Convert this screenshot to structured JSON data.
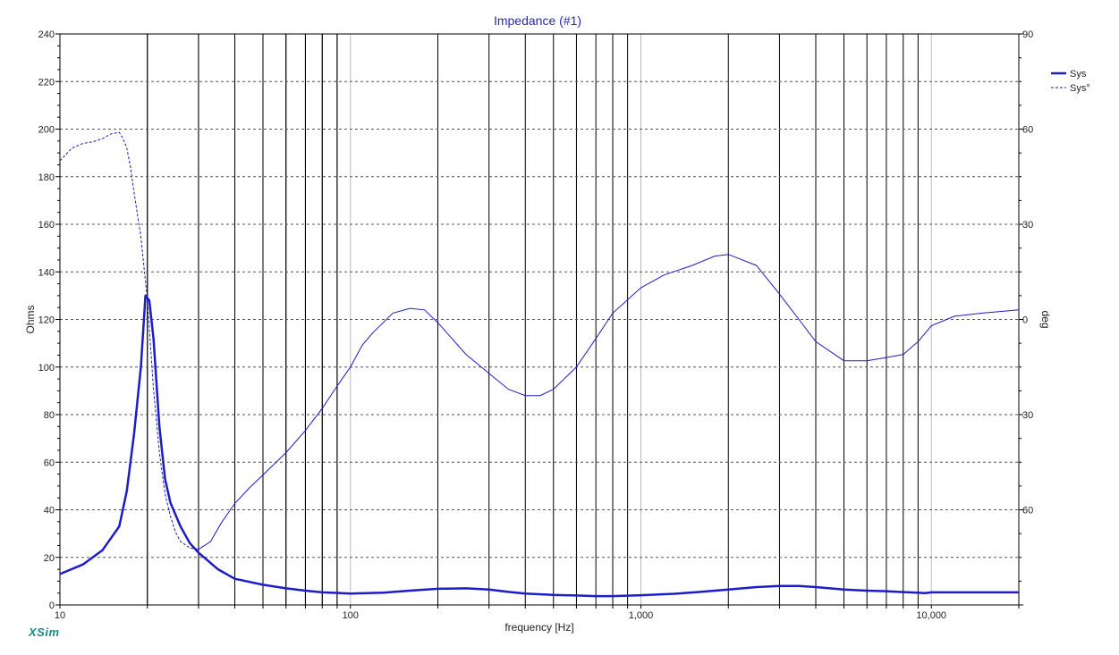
{
  "chart_data": {
    "type": "line",
    "title": "Impedance (#1)",
    "xlabel": "frequency [Hz]",
    "ylabel_left": "Ohms",
    "ylabel_right": "deg",
    "x_scale": "log",
    "xlim": [
      10,
      20000
    ],
    "ylim_left": [
      0,
      240
    ],
    "ylim_right": [
      -90,
      90
    ],
    "x_tick_labels": [
      {
        "value": 10,
        "label": "10"
      },
      {
        "value": 100,
        "label": "100"
      },
      {
        "value": 1000,
        "label": "1,000"
      },
      {
        "value": 10000,
        "label": "10,000"
      }
    ],
    "y_left_ticks": [
      0,
      20,
      40,
      60,
      80,
      100,
      120,
      140,
      160,
      180,
      200,
      220,
      240
    ],
    "y_right_ticks": [
      {
        "value": 90,
        "label": "90"
      },
      {
        "value": 60,
        "label": "60"
      },
      {
        "value": 30,
        "label": "30"
      },
      {
        "value": 0,
        "label": "0"
      },
      {
        "value": -30,
        "label": "30"
      },
      {
        "value": -60,
        "label": "60"
      }
    ],
    "grid": true,
    "legend_position": "top-right",
    "colors": {
      "series": "#1c1cc8",
      "text": "#222222",
      "title": "#2a2ab0",
      "logo": "#1a8a8a",
      "grid": "#555555"
    },
    "series": [
      {
        "name": "Sys",
        "axis": "left",
        "style": "solid-thick",
        "x": [
          10,
          12,
          14,
          16,
          17,
          18,
          19,
          19.7,
          20.3,
          21,
          22,
          23,
          24,
          26,
          28,
          30,
          35,
          40,
          50,
          60,
          70,
          80,
          100,
          130,
          160,
          200,
          250,
          300,
          350,
          400,
          500,
          600,
          700,
          800,
          1000,
          1300,
          1600,
          2000,
          2500,
          3000,
          3500,
          4000,
          5000,
          6000,
          7000,
          8000,
          9000,
          9500,
          10000,
          12000,
          15000,
          20000
        ],
        "y": [
          13,
          17,
          23,
          33,
          48,
          72,
          100,
          130,
          128,
          112,
          75,
          53,
          43,
          33,
          26,
          22,
          15,
          11,
          8.5,
          7,
          6,
          5.3,
          4.8,
          5.2,
          6,
          6.8,
          7,
          6.5,
          5.5,
          4.8,
          4.2,
          4,
          3.7,
          3.7,
          4.1,
          4.7,
          5.5,
          6.5,
          7.5,
          8,
          8,
          7.5,
          6.5,
          6,
          5.8,
          5.4,
          5.2,
          5,
          5.3,
          5.3,
          5.3,
          5.3
        ]
      },
      {
        "name": "Sys°",
        "axis": "right",
        "style": "dashed-then-thin",
        "dash_until_x": 30,
        "x": [
          10,
          11,
          12,
          13,
          14,
          15,
          16,
          16.5,
          17,
          17.5,
          18,
          19,
          20,
          21,
          22,
          23,
          24,
          25,
          26,
          28,
          30,
          33,
          36,
          40,
          45,
          50,
          60,
          70,
          80,
          90,
          100,
          110,
          120,
          140,
          160,
          180,
          200,
          250,
          300,
          350,
          400,
          450,
          500,
          600,
          700,
          800,
          1000,
          1200,
          1500,
          1800,
          2000,
          2500,
          3000,
          3500,
          4000,
          5000,
          6000,
          7000,
          8000,
          9000,
          10000,
          12000,
          15000,
          20000
        ],
        "y": [
          50,
          54,
          55.5,
          56,
          57,
          58.5,
          59,
          57,
          54,
          48,
          40,
          26,
          6,
          -22,
          -42,
          -55,
          -62,
          -67,
          -70,
          -72,
          -72.5,
          -70,
          -64,
          -58,
          -53,
          -49,
          -42,
          -35,
          -28,
          -21,
          -15,
          -8,
          -4,
          2,
          3.5,
          3,
          -1,
          -11,
          -17,
          -22,
          -24,
          -24,
          -22,
          -15,
          -6,
          2,
          10,
          14,
          17,
          20,
          20.5,
          17,
          8,
          0,
          -7,
          -13,
          -13,
          -12,
          -11,
          -7,
          -2,
          1,
          2,
          3
        ]
      }
    ]
  },
  "branding": {
    "logo": "XSim"
  }
}
